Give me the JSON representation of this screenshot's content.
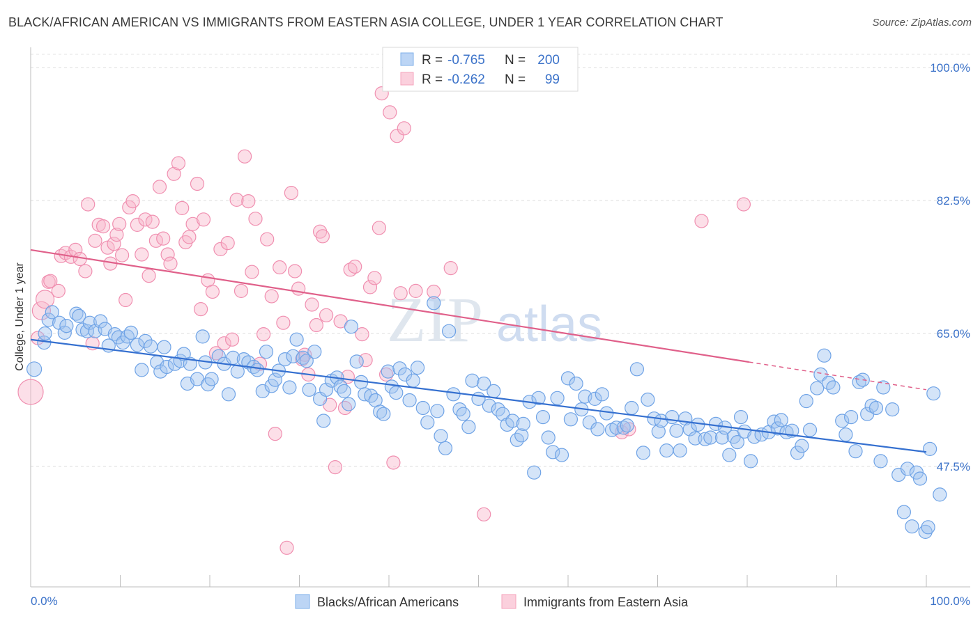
{
  "title": "BLACK/AFRICAN AMERICAN VS IMMIGRANTS FROM EASTERN ASIA COLLEGE, UNDER 1 YEAR CORRELATION CHART",
  "source": "Source: ZipAtlas.com",
  "watermark": {
    "zip": "ZIP",
    "atlas": "atlas"
  },
  "legend_top": [
    {
      "r_label": "R =",
      "r_value": "-0.765",
      "n_label": "N =",
      "n_value": "200",
      "color": "#7fb0ea"
    },
    {
      "r_label": "R =",
      "r_value": "-0.262",
      "n_label": "N =",
      "n_value": "99",
      "color": "#f4a3bc"
    }
  ],
  "legend_bottom": [
    {
      "label": "Blacks/African Americans",
      "color": "#7fb0ea"
    },
    {
      "label": "Immigrants from Eastern Asia",
      "color": "#f4a3bc"
    }
  ],
  "chart_data": {
    "type": "scatter",
    "title": "BLACK/AFRICAN AMERICAN VS IMMIGRANTS FROM EASTERN ASIA COLLEGE, UNDER 1 YEAR CORRELATION CHART",
    "xlabel": "",
    "ylabel": "College, Under 1 year",
    "x_tick_labels": [
      "0.0%",
      "100.0%"
    ],
    "y_tick_labels": [
      "100.0%",
      "82.5%",
      "65.0%",
      "47.5%"
    ],
    "y_ticks": [
      100.0,
      82.5,
      65.0,
      47.5
    ],
    "xlim": [
      0,
      100
    ],
    "ylim": [
      30.5,
      102
    ],
    "grid": "horizontal dashed",
    "legend_position": "top-center",
    "series": [
      {
        "name": "Blacks/African Americans",
        "color": "#7fb0ea",
        "line_color": "#3570d0",
        "trend": {
          "x0": 0,
          "y0": 64.2,
          "x1": 100,
          "y1": 49.4,
          "dashed_from": null
        },
        "points": [
          [
            0.4,
            60.3
          ],
          [
            1.5,
            63.8
          ],
          [
            1.6,
            65.0
          ],
          [
            2.0,
            66.8
          ],
          [
            2.4,
            67.8
          ],
          [
            3.2,
            66.4
          ],
          [
            3.8,
            65.1
          ],
          [
            4.0,
            66.0
          ],
          [
            5.1,
            67.6
          ],
          [
            5.4,
            67.3
          ],
          [
            5.8,
            65.5
          ],
          [
            6.3,
            65.3
          ],
          [
            6.6,
            66.4
          ],
          [
            7.2,
            65.3
          ],
          [
            7.8,
            66.6
          ],
          [
            8.3,
            65.6
          ],
          [
            8.7,
            63.4
          ],
          [
            9.4,
            64.9
          ],
          [
            9.8,
            64.5
          ],
          [
            10.3,
            63.8
          ],
          [
            10.8,
            64.6
          ],
          [
            11.2,
            65.1
          ],
          [
            11.9,
            63.5
          ],
          [
            12.4,
            60.2
          ],
          [
            12.8,
            64.0
          ],
          [
            13.4,
            63.3
          ],
          [
            14.1,
            61.2
          ],
          [
            14.5,
            60.0
          ],
          [
            14.9,
            63.2
          ],
          [
            15.2,
            60.6
          ],
          [
            16.1,
            61.0
          ],
          [
            16.7,
            61.4
          ],
          [
            17.1,
            62.3
          ],
          [
            17.5,
            58.4
          ],
          [
            17.8,
            61.0
          ],
          [
            18.6,
            59.0
          ],
          [
            19.2,
            64.6
          ],
          [
            19.5,
            61.2
          ],
          [
            19.8,
            58.3
          ],
          [
            20.2,
            59.0
          ],
          [
            21.0,
            62.0
          ],
          [
            21.6,
            61.0
          ],
          [
            22.1,
            57.0
          ],
          [
            22.6,
            61.8
          ],
          [
            23.1,
            60.0
          ],
          [
            23.8,
            61.6
          ],
          [
            24.3,
            61.2
          ],
          [
            24.9,
            60.6
          ],
          [
            25.3,
            60.2
          ],
          [
            25.9,
            57.4
          ],
          [
            26.3,
            62.6
          ],
          [
            26.9,
            58.1
          ],
          [
            27.3,
            58.9
          ],
          [
            27.7,
            60.1
          ],
          [
            28.4,
            61.6
          ],
          [
            28.9,
            57.9
          ],
          [
            29.3,
            62.0
          ],
          [
            29.7,
            64.2
          ],
          [
            30.4,
            61.8
          ],
          [
            30.8,
            61.4
          ],
          [
            31.1,
            57.6
          ],
          [
            31.7,
            62.6
          ],
          [
            32.3,
            56.4
          ],
          [
            32.7,
            53.5
          ],
          [
            33.0,
            57.6
          ],
          [
            33.6,
            58.8
          ],
          [
            34.2,
            59.2
          ],
          [
            34.6,
            58.0
          ],
          [
            35.0,
            57.4
          ],
          [
            35.5,
            55.7
          ],
          [
            35.8,
            65.9
          ],
          [
            36.4,
            61.3
          ],
          [
            36.9,
            58.6
          ],
          [
            37.3,
            57.0
          ],
          [
            38.0,
            56.8
          ],
          [
            38.5,
            56.2
          ],
          [
            39.0,
            54.7
          ],
          [
            39.4,
            54.4
          ],
          [
            39.9,
            60.0
          ],
          [
            40.3,
            58.0
          ],
          [
            40.8,
            57.2
          ],
          [
            41.2,
            60.4
          ],
          [
            41.8,
            59.6
          ],
          [
            42.3,
            56.2
          ],
          [
            42.7,
            58.8
          ],
          [
            43.2,
            60.5
          ],
          [
            43.8,
            55.2
          ],
          [
            44.3,
            53.3
          ],
          [
            45.0,
            69.0
          ],
          [
            45.4,
            54.8
          ],
          [
            45.8,
            51.5
          ],
          [
            46.3,
            49.9
          ],
          [
            46.7,
            65.3
          ],
          [
            47.2,
            57.0
          ],
          [
            47.9,
            55.0
          ],
          [
            48.3,
            54.4
          ],
          [
            48.9,
            52.7
          ],
          [
            49.3,
            58.8
          ],
          [
            50.0,
            56.4
          ],
          [
            50.6,
            58.4
          ],
          [
            51.2,
            55.5
          ],
          [
            51.7,
            57.4
          ],
          [
            52.2,
            55.0
          ],
          [
            52.7,
            54.4
          ],
          [
            53.2,
            53.0
          ],
          [
            53.8,
            53.5
          ],
          [
            54.3,
            51.0
          ],
          [
            54.8,
            51.6
          ],
          [
            55.0,
            53.1
          ],
          [
            55.7,
            56.0
          ],
          [
            56.2,
            46.7
          ],
          [
            56.7,
            56.5
          ],
          [
            57.2,
            54.0
          ],
          [
            57.8,
            51.3
          ],
          [
            58.3,
            49.4
          ],
          [
            58.8,
            56.5
          ],
          [
            59.3,
            49.0
          ],
          [
            60.0,
            59.1
          ],
          [
            60.3,
            53.7
          ],
          [
            60.9,
            58.4
          ],
          [
            61.5,
            55.0
          ],
          [
            61.9,
            56.7
          ],
          [
            62.4,
            53.3
          ],
          [
            63.0,
            56.4
          ],
          [
            63.3,
            52.4
          ],
          [
            63.8,
            57.0
          ],
          [
            64.3,
            54.5
          ],
          [
            64.9,
            52.3
          ],
          [
            65.4,
            52.6
          ],
          [
            66.2,
            52.6
          ],
          [
            66.6,
            52.9
          ],
          [
            67.1,
            55.2
          ],
          [
            67.7,
            60.3
          ],
          [
            68.4,
            49.3
          ],
          [
            68.9,
            56.3
          ],
          [
            69.6,
            53.8
          ],
          [
            70.1,
            52.1
          ],
          [
            70.4,
            53.5
          ],
          [
            71.0,
            49.6
          ],
          [
            71.6,
            54.0
          ],
          [
            72.1,
            52.2
          ],
          [
            72.5,
            49.6
          ],
          [
            73.1,
            53.8
          ],
          [
            73.6,
            52.4
          ],
          [
            74.2,
            51.2
          ],
          [
            74.5,
            53.0
          ],
          [
            75.3,
            51.1
          ],
          [
            75.9,
            51.3
          ],
          [
            76.5,
            53.1
          ],
          [
            77.2,
            51.3
          ],
          [
            77.5,
            52.6
          ],
          [
            78.0,
            49.0
          ],
          [
            78.5,
            51.4
          ],
          [
            78.9,
            50.7
          ],
          [
            79.3,
            54.0
          ],
          [
            79.7,
            52.1
          ],
          [
            80.4,
            48.2
          ],
          [
            80.8,
            51.4
          ],
          [
            81.6,
            51.7
          ],
          [
            82.4,
            52.0
          ],
          [
            83.0,
            53.4
          ],
          [
            83.4,
            52.5
          ],
          [
            83.8,
            53.6
          ],
          [
            84.4,
            52.0
          ],
          [
            85.0,
            52.2
          ],
          [
            85.6,
            49.3
          ],
          [
            86.1,
            50.2
          ],
          [
            86.6,
            56.1
          ],
          [
            87.0,
            52.3
          ],
          [
            87.8,
            57.8
          ],
          [
            88.2,
            59.6
          ],
          [
            88.6,
            62.1
          ],
          [
            89.1,
            58.5
          ],
          [
            89.6,
            57.9
          ],
          [
            90.6,
            53.5
          ],
          [
            91.0,
            51.7
          ],
          [
            91.6,
            54.0
          ],
          [
            92.1,
            49.5
          ],
          [
            92.5,
            58.6
          ],
          [
            92.9,
            58.9
          ],
          [
            93.4,
            54.4
          ],
          [
            93.9,
            55.5
          ],
          [
            94.4,
            55.2
          ],
          [
            94.9,
            48.2
          ],
          [
            95.2,
            57.9
          ],
          [
            96.2,
            55.0
          ],
          [
            96.9,
            46.4
          ],
          [
            97.5,
            41.5
          ],
          [
            97.9,
            47.2
          ],
          [
            98.4,
            39.6
          ],
          [
            98.9,
            46.7
          ],
          [
            99.3,
            45.9
          ],
          [
            99.9,
            38.9
          ],
          [
            100.2,
            39.5
          ],
          [
            100.4,
            49.8
          ],
          [
            100.8,
            57.1
          ],
          [
            101.5,
            43.8
          ]
        ]
      },
      {
        "name": "Immigrants from Eastern Asia",
        "color": "#f4a3bc",
        "line_color": "#e0608a",
        "trend": {
          "x0": 0,
          "y0": 76.0,
          "x1": 100,
          "y1": 57.6,
          "dashed_from": 80.2
        },
        "points": [
          [
            0.0,
            57.3
          ],
          [
            0.8,
            64.4
          ],
          [
            1.2,
            68.0
          ],
          [
            1.6,
            69.5
          ],
          [
            2.0,
            71.8
          ],
          [
            2.2,
            71.9
          ],
          [
            3.1,
            70.6
          ],
          [
            3.4,
            75.2
          ],
          [
            3.9,
            75.6
          ],
          [
            4.5,
            75.1
          ],
          [
            5.0,
            76.0
          ],
          [
            5.5,
            74.8
          ],
          [
            6.1,
            73.2
          ],
          [
            6.4,
            82.0
          ],
          [
            6.9,
            63.7
          ],
          [
            7.2,
            77.2
          ],
          [
            7.6,
            79.3
          ],
          [
            8.1,
            79.1
          ],
          [
            8.6,
            76.3
          ],
          [
            8.9,
            74.2
          ],
          [
            9.3,
            76.8
          ],
          [
            9.6,
            78.0
          ],
          [
            9.9,
            79.4
          ],
          [
            10.2,
            75.3
          ],
          [
            10.6,
            69.4
          ],
          [
            11.0,
            81.6
          ],
          [
            11.4,
            82.4
          ],
          [
            11.9,
            79.3
          ],
          [
            12.4,
            75.4
          ],
          [
            12.8,
            80.0
          ],
          [
            13.2,
            72.6
          ],
          [
            13.6,
            79.7
          ],
          [
            14.0,
            77.2
          ],
          [
            14.4,
            84.3
          ],
          [
            14.8,
            77.5
          ],
          [
            15.3,
            75.4
          ],
          [
            15.6,
            74.2
          ],
          [
            16.0,
            86.0
          ],
          [
            16.5,
            87.4
          ],
          [
            16.9,
            81.5
          ],
          [
            17.3,
            77.0
          ],
          [
            17.7,
            77.7
          ],
          [
            18.1,
            79.4
          ],
          [
            18.6,
            84.7
          ],
          [
            19.0,
            68.2
          ],
          [
            19.3,
            80.0
          ],
          [
            19.8,
            72.0
          ],
          [
            20.3,
            70.5
          ],
          [
            20.7,
            62.4
          ],
          [
            21.2,
            76.1
          ],
          [
            21.6,
            63.7
          ],
          [
            22.0,
            76.9
          ],
          [
            22.5,
            64.2
          ],
          [
            23.0,
            82.6
          ],
          [
            23.5,
            70.6
          ],
          [
            23.9,
            88.3
          ],
          [
            24.3,
            82.4
          ],
          [
            24.7,
            73.1
          ],
          [
            25.1,
            80.1
          ],
          [
            25.6,
            61.0
          ],
          [
            26.0,
            64.9
          ],
          [
            26.4,
            77.4
          ],
          [
            26.9,
            69.9
          ],
          [
            27.3,
            51.8
          ],
          [
            27.8,
            73.7
          ],
          [
            28.2,
            66.4
          ],
          [
            28.6,
            36.8
          ],
          [
            29.1,
            83.5
          ],
          [
            29.5,
            73.2
          ],
          [
            29.9,
            70.9
          ],
          [
            30.3,
            61.6
          ],
          [
            30.6,
            62.2
          ],
          [
            31.0,
            59.6
          ],
          [
            31.4,
            68.8
          ],
          [
            31.9,
            66.1
          ],
          [
            32.3,
            78.4
          ],
          [
            32.6,
            77.8
          ],
          [
            33.0,
            67.4
          ],
          [
            33.4,
            55.6
          ],
          [
            34.0,
            47.4
          ],
          [
            34.6,
            66.6
          ],
          [
            35.1,
            55.2
          ],
          [
            35.4,
            59.3
          ],
          [
            35.7,
            73.4
          ],
          [
            36.2,
            73.8
          ],
          [
            37.0,
            64.9
          ],
          [
            37.4,
            61.5
          ],
          [
            37.9,
            71.1
          ],
          [
            38.4,
            72.3
          ],
          [
            38.9,
            78.9
          ],
          [
            39.2,
            96.6
          ],
          [
            39.7,
            59.6
          ],
          [
            40.1,
            94.1
          ],
          [
            40.5,
            48.0
          ],
          [
            40.9,
            91.0
          ],
          [
            41.3,
            70.3
          ],
          [
            41.7,
            92.0
          ],
          [
            43.0,
            70.6
          ],
          [
            45.0,
            70.5
          ],
          [
            46.9,
            73.6
          ],
          [
            50.6,
            41.2
          ],
          [
            66.0,
            52.0
          ],
          [
            66.8,
            52.4
          ],
          [
            74.9,
            79.8
          ],
          [
            79.6,
            82.0
          ]
        ]
      }
    ]
  }
}
